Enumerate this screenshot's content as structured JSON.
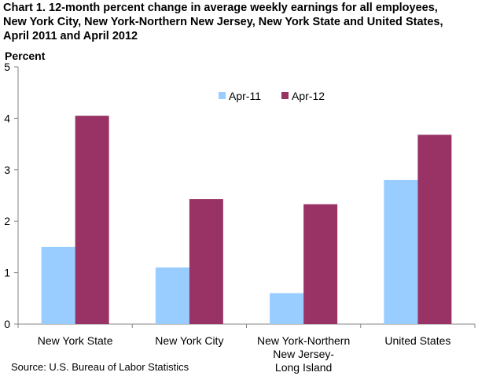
{
  "title_lines": [
    "Chart 1. 12-month percent change in average weekly earnings for all employees,",
    "New York City, New York-Northern New Jersey, New York State and United States,",
    "April 2011 and April 2012"
  ],
  "source": "Source: U.S. Bureau of Labor Statistics",
  "colors": {
    "apr11": "#99ccff",
    "apr12": "#993366",
    "axis": "#868686"
  },
  "chart_data": {
    "type": "bar",
    "title": "Chart 1. 12-month percent change in average weekly earnings for all employees, New York City, New York-Northern New Jersey, New York State and United States, April 2011 and April 2012",
    "xlabel": "",
    "ylabel": "Percent",
    "ylim": [
      0,
      5
    ],
    "yticks": [
      0,
      1,
      2,
      3,
      4,
      5
    ],
    "grid": false,
    "legend_position": "top-right",
    "categories": [
      [
        "New York State"
      ],
      [
        "New York City"
      ],
      [
        "New York-Northern",
        "New Jersey-",
        "Long Island"
      ],
      [
        "United States"
      ]
    ],
    "series": [
      {
        "name": "Apr-11",
        "color": "#99ccff",
        "values": [
          1.5,
          1.1,
          0.6,
          2.8
        ]
      },
      {
        "name": "Apr-12",
        "color": "#993366",
        "values": [
          4.05,
          2.43,
          2.33,
          3.68
        ]
      }
    ]
  }
}
